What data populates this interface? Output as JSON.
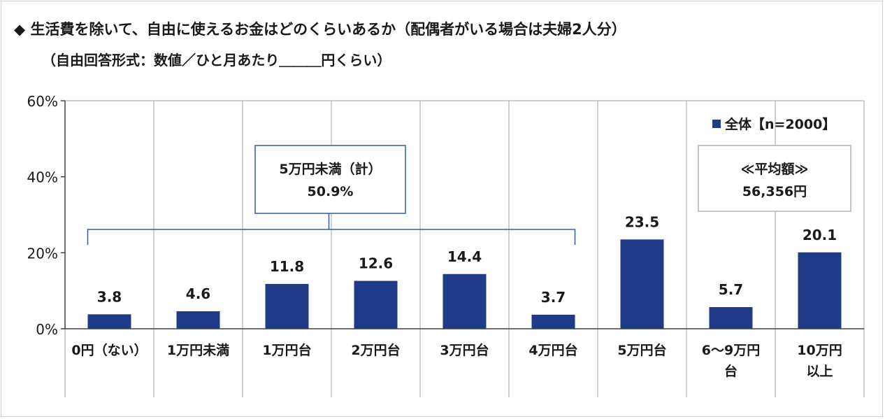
{
  "title": "◆ 生活費を除いて、自由に使えるお金はどのくらいあるか（配偶者がいる場合は夫婦2人分）",
  "subtitle": "（自由回答形式：数値／ひと月あたり＿＿＿円くらい）",
  "colors": {
    "bar": "#1f3a86",
    "grid": "#a6a6a6",
    "axis": "#404040",
    "bracket": "#2e5fa3",
    "text": "#1a1a1a"
  },
  "chart_data": {
    "type": "bar",
    "categories": [
      [
        "0円（ない）"
      ],
      [
        "1万円未満"
      ],
      [
        "1万円台"
      ],
      [
        "2万円台"
      ],
      [
        "3万円台"
      ],
      [
        "4万円台"
      ],
      [
        "5万円台"
      ],
      [
        "6～9万円",
        "台"
      ],
      [
        "10万円",
        "以上"
      ]
    ],
    "series": [
      {
        "name": "全体【n=2000】",
        "values": [
          3.8,
          4.6,
          11.8,
          12.6,
          14.4,
          3.7,
          23.5,
          5.7,
          20.1
        ]
      }
    ],
    "value_labels": [
      "3.8",
      "4.6",
      "11.8",
      "12.6",
      "14.4",
      "3.7",
      "23.5",
      "5.7",
      "20.1"
    ],
    "ylim": [
      0,
      60
    ],
    "yticks": [
      "0%",
      "20%",
      "40%",
      "60%"
    ],
    "ytick_values": [
      0,
      20,
      40,
      60
    ],
    "legend": "top-right",
    "annotations": {
      "group_box": {
        "line1": "5万円未満（計）",
        "line2": "50.9%",
        "from_category": 0,
        "to_category": 5
      },
      "average_box": {
        "line1": "≪平均額≫",
        "line2": "56,356円"
      }
    }
  }
}
